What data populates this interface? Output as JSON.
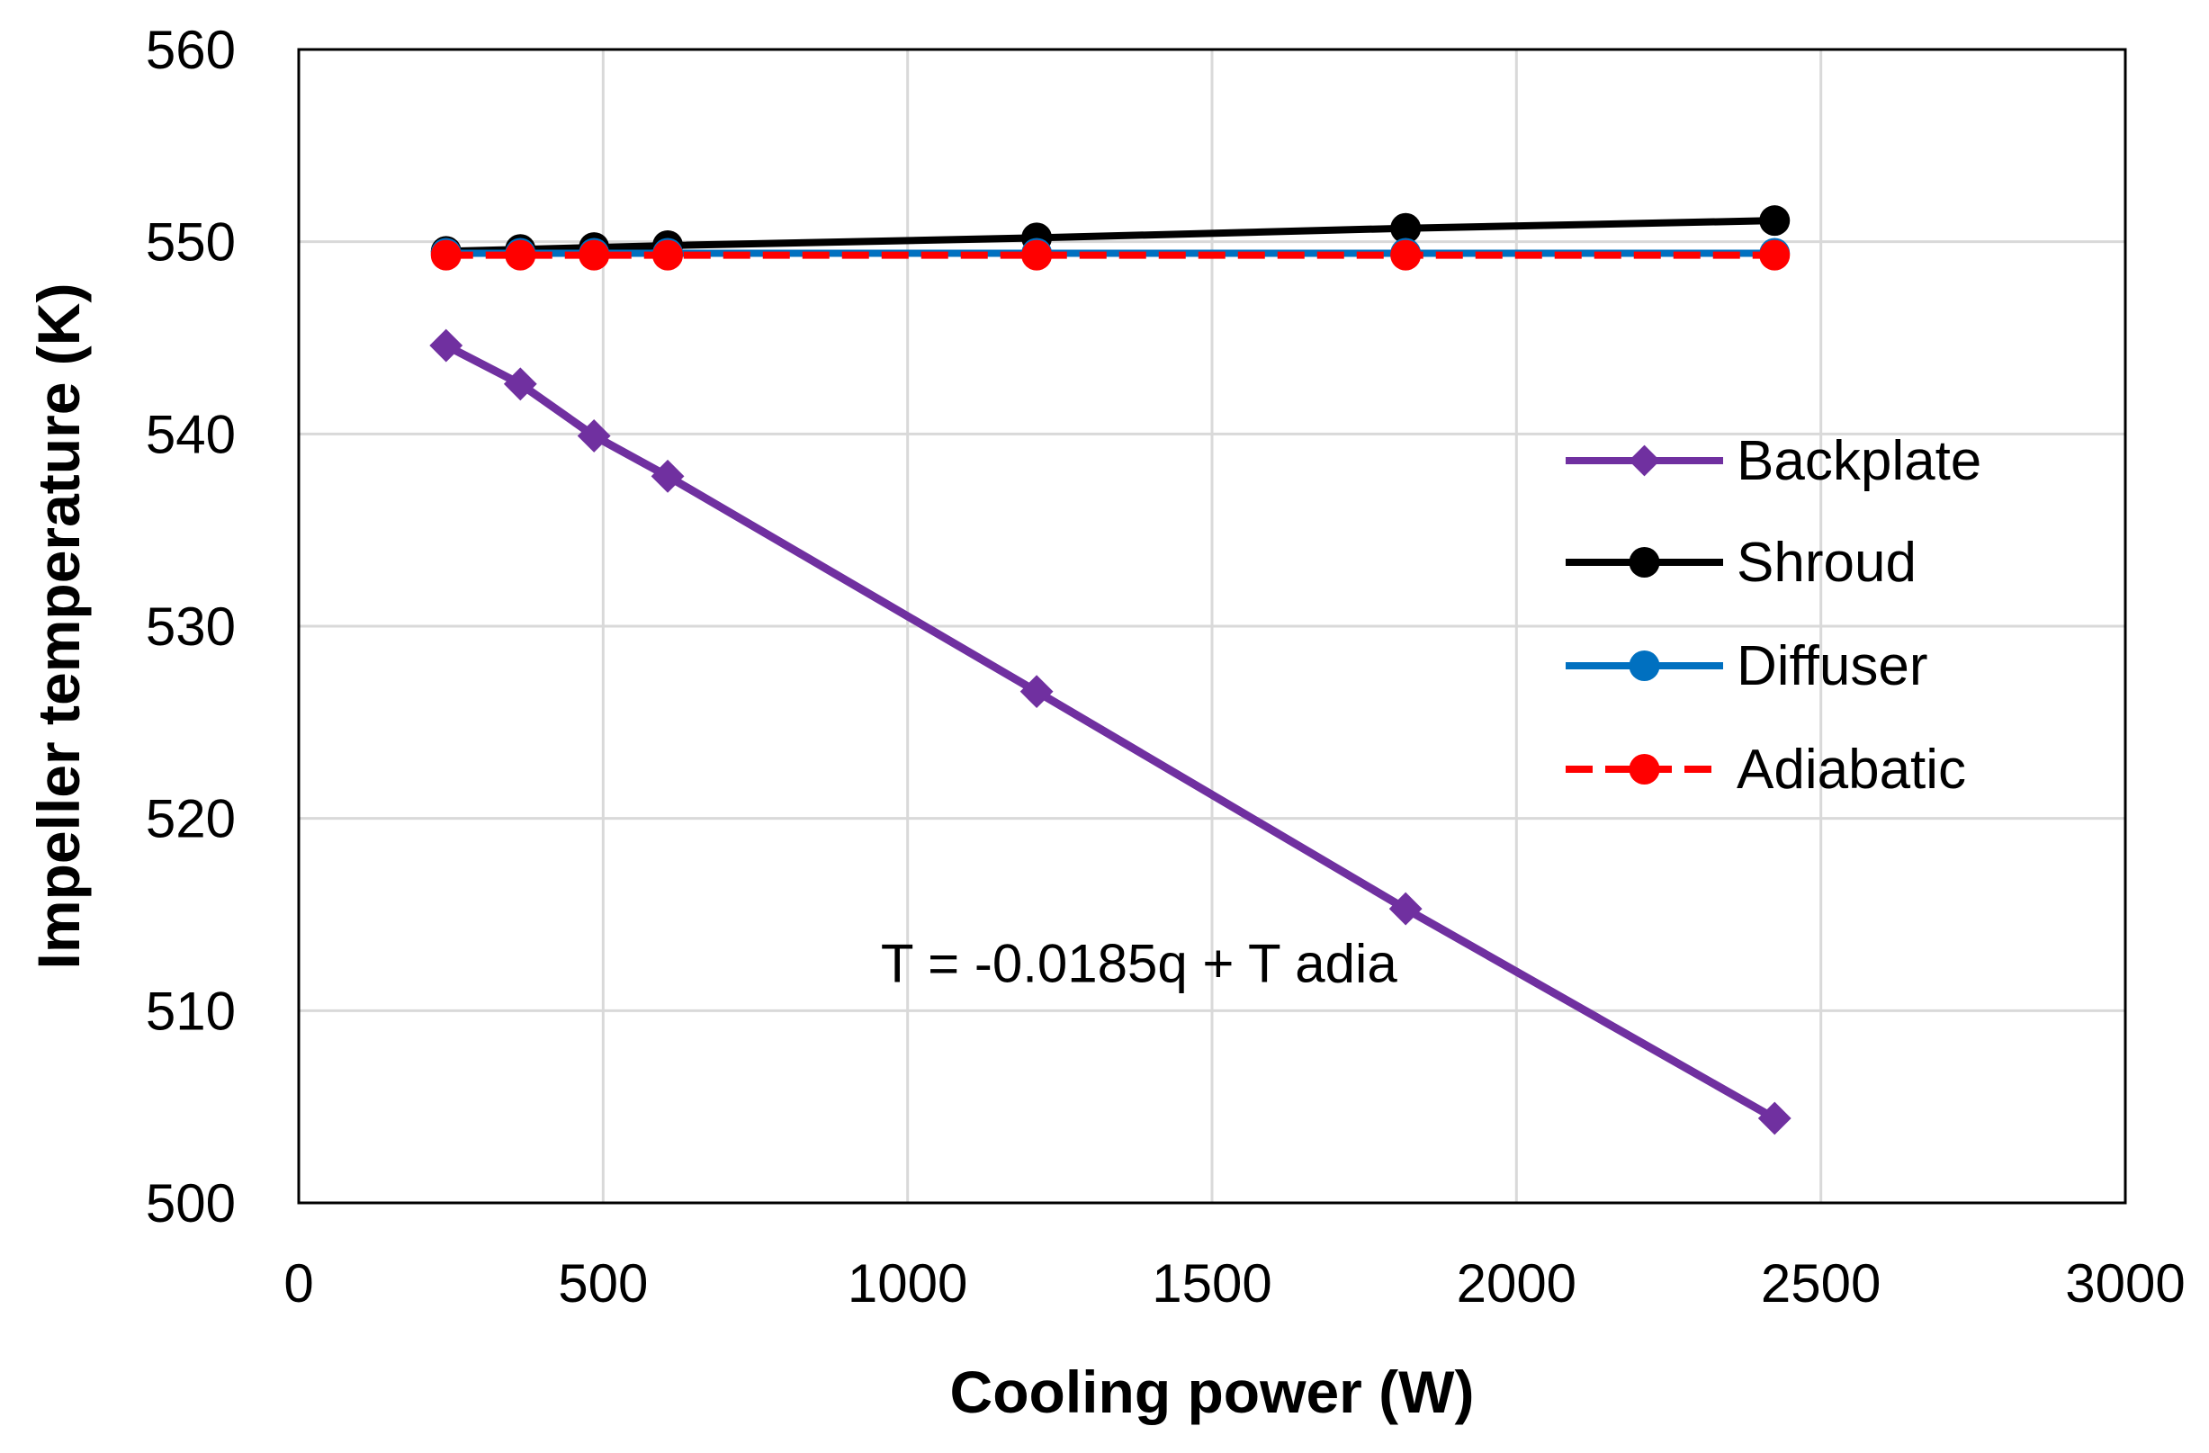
{
  "chart_data": {
    "type": "line",
    "title": "",
    "xlabel": "Cooling power (W)",
    "ylabel": "Impeller temperature (K)",
    "xlim": [
      0,
      3000
    ],
    "ylim": [
      500,
      560
    ],
    "xticks": [
      0,
      500,
      1000,
      1500,
      2000,
      2500,
      3000
    ],
    "yticks": [
      500,
      510,
      520,
      530,
      540,
      550,
      560
    ],
    "xtick_labels": [
      "0",
      "500",
      "1000",
      "1500",
      "2000",
      "2500",
      "3000"
    ],
    "ytick_labels": [
      "500",
      "510",
      "520",
      "530",
      "540",
      "550",
      "560"
    ],
    "grid": true,
    "legend_position": "right",
    "x": [
      242,
      364,
      485,
      606,
      1212,
      1818,
      2424
    ],
    "series": [
      {
        "name": "Backplate",
        "color": "#7030A0",
        "dashed": false,
        "marker": "diamond",
        "values": [
          544.6,
          542.6,
          539.9,
          537.8,
          526.6,
          515.3,
          504.4
        ]
      },
      {
        "name": "Shroud",
        "color": "#000000",
        "dashed": false,
        "marker": "circle",
        "values": [
          549.5,
          549.6,
          549.7,
          549.8,
          550.2,
          550.7,
          551.1
        ]
      },
      {
        "name": "Diffuser",
        "color": "#0070C0",
        "dashed": false,
        "marker": "circle",
        "values": [
          549.4,
          549.4,
          549.4,
          549.4,
          549.4,
          549.4,
          549.4
        ]
      },
      {
        "name": "Adiabatic",
        "color": "#FF0000",
        "dashed": true,
        "marker": "circle",
        "values": [
          549.3,
          549.3,
          549.3,
          549.3,
          549.3,
          549.3,
          549.3
        ]
      }
    ],
    "annotations": [
      {
        "text": "T = -0.0185q + T adia",
        "x": 1380,
        "y": 511.5
      }
    ]
  }
}
